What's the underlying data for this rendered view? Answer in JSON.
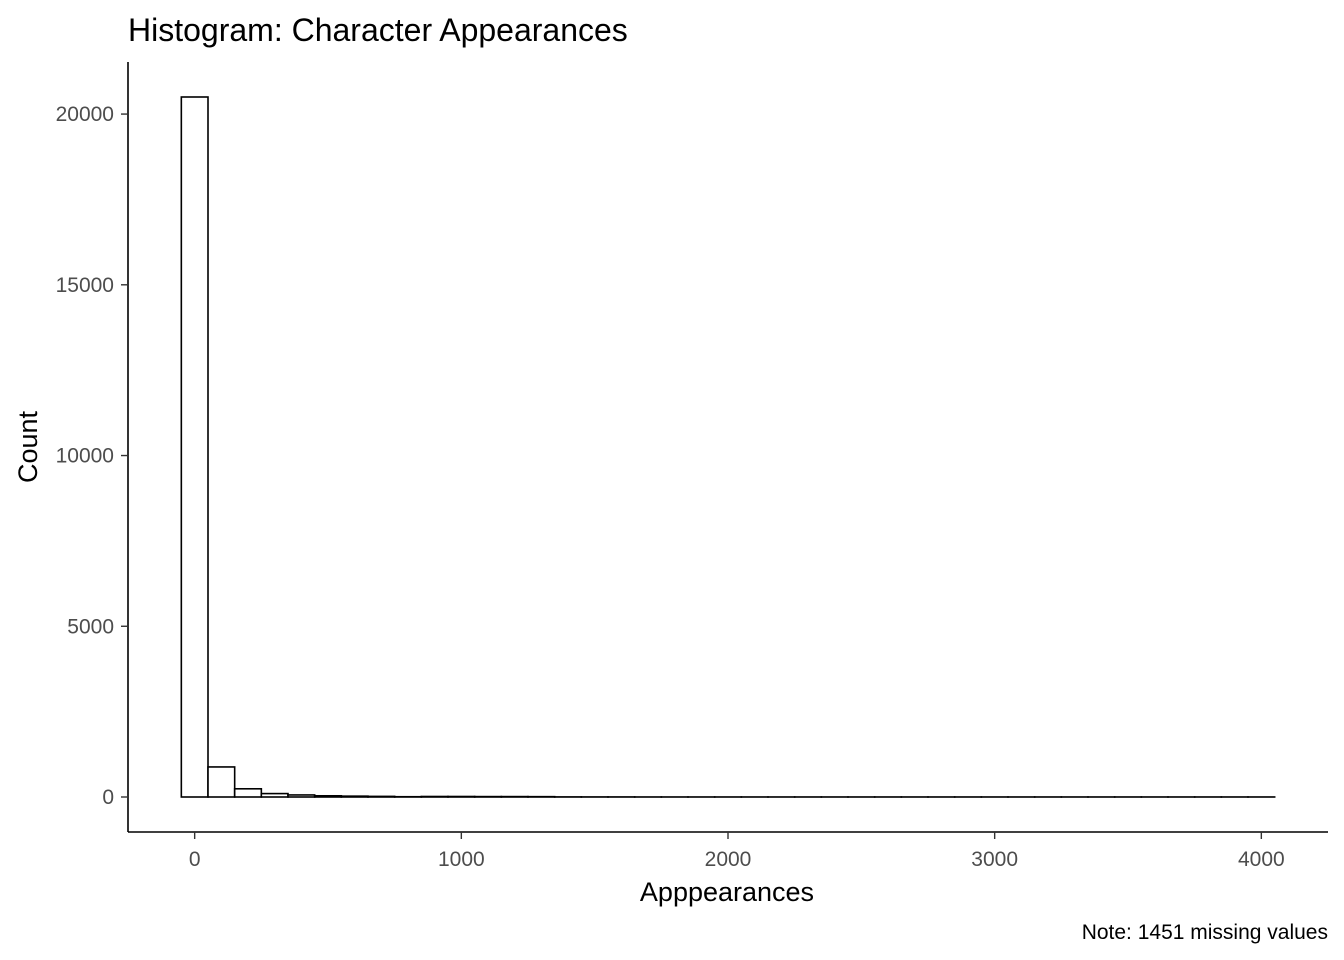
{
  "chart_data": {
    "type": "bar",
    "title": "Histogram: Character Appearances",
    "xlabel": "Apppearances",
    "ylabel": "Count",
    "caption": "Note: 1451 missing values",
    "binwidth": 100,
    "bins": [
      {
        "x0": -50,
        "x1": 50,
        "count": 20500
      },
      {
        "x0": 50,
        "x1": 150,
        "count": 880
      },
      {
        "x0": 150,
        "x1": 250,
        "count": 240
      },
      {
        "x0": 250,
        "x1": 350,
        "count": 100
      },
      {
        "x0": 350,
        "x1": 450,
        "count": 60
      },
      {
        "x0": 450,
        "x1": 550,
        "count": 35
      },
      {
        "x0": 550,
        "x1": 650,
        "count": 25
      },
      {
        "x0": 650,
        "x1": 750,
        "count": 18
      },
      {
        "x0": 750,
        "x1": 850,
        "count": 8
      },
      {
        "x0": 850,
        "x1": 950,
        "count": 15
      },
      {
        "x0": 950,
        "x1": 1050,
        "count": 15
      },
      {
        "x0": 1050,
        "x1": 1150,
        "count": 12
      },
      {
        "x0": 1150,
        "x1": 1250,
        "count": 12
      },
      {
        "x0": 1250,
        "x1": 1350,
        "count": 10
      },
      {
        "x0": 1350,
        "x1": 1450,
        "count": 3
      },
      {
        "x0": 1450,
        "x1": 1550,
        "count": 2
      },
      {
        "x0": 1550,
        "x1": 1650,
        "count": 2
      },
      {
        "x0": 1650,
        "x1": 1750,
        "count": 1
      },
      {
        "x0": 1750,
        "x1": 1850,
        "count": 1
      },
      {
        "x0": 1850,
        "x1": 1950,
        "count": 1
      },
      {
        "x0": 1950,
        "x1": 2050,
        "count": 1
      },
      {
        "x0": 2050,
        "x1": 2150,
        "count": 1
      },
      {
        "x0": 2150,
        "x1": 2250,
        "count": 1
      },
      {
        "x0": 2250,
        "x1": 2350,
        "count": 1
      },
      {
        "x0": 2350,
        "x1": 2450,
        "count": 1
      },
      {
        "x0": 2450,
        "x1": 2550,
        "count": 1
      },
      {
        "x0": 2550,
        "x1": 2650,
        "count": 1
      },
      {
        "x0": 2650,
        "x1": 2750,
        "count": 1
      },
      {
        "x0": 2750,
        "x1": 2850,
        "count": 1
      },
      {
        "x0": 2850,
        "x1": 2950,
        "count": 1
      },
      {
        "x0": 2950,
        "x1": 3050,
        "count": 1
      },
      {
        "x0": 3050,
        "x1": 3150,
        "count": 1
      },
      {
        "x0": 3150,
        "x1": 3250,
        "count": 1
      },
      {
        "x0": 3250,
        "x1": 3350,
        "count": 1
      },
      {
        "x0": 3350,
        "x1": 3450,
        "count": 1
      },
      {
        "x0": 3450,
        "x1": 3550,
        "count": 1
      },
      {
        "x0": 3550,
        "x1": 3650,
        "count": 1
      },
      {
        "x0": 3650,
        "x1": 3750,
        "count": 1
      },
      {
        "x0": 3750,
        "x1": 3850,
        "count": 1
      },
      {
        "x0": 3850,
        "x1": 3950,
        "count": 1
      },
      {
        "x0": 3950,
        "x1": 4050,
        "count": 1
      }
    ],
    "xticks": [
      0,
      1000,
      2000,
      3000,
      4000
    ],
    "xtick_labels": [
      "0",
      "1000",
      "2000",
      "3000",
      "4000"
    ],
    "yticks": [
      0,
      5000,
      10000,
      15000,
      20000
    ],
    "ytick_labels": [
      "0",
      "5000",
      "10000",
      "15000",
      "20000"
    ],
    "xlim": [
      -250,
      4250
    ],
    "ylim": [
      -1025,
      21525
    ],
    "grid": false,
    "legend": "none",
    "colors": {
      "bar_fill": "#ffffff",
      "bar_stroke": "#000000",
      "axis_line": "#000000",
      "tick_label": "#4d4d4d",
      "text": "#000000"
    }
  }
}
